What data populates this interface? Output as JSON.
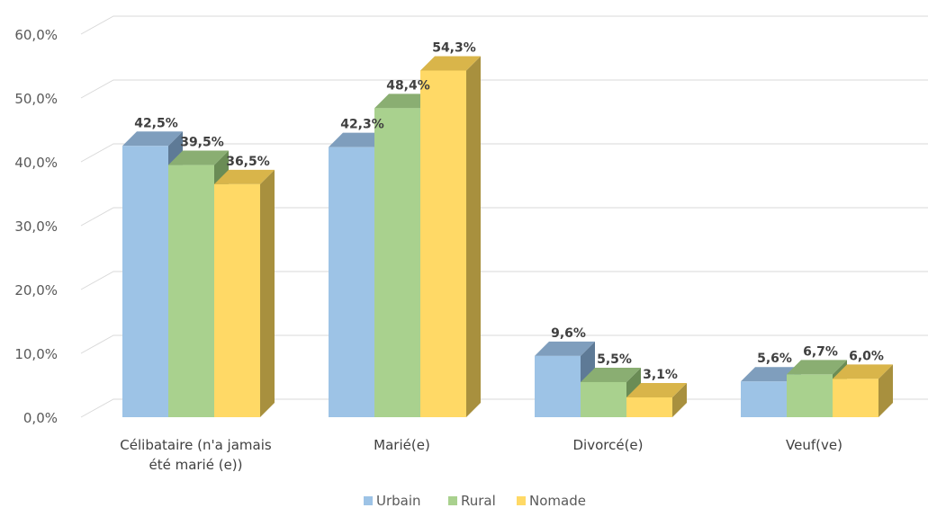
{
  "chart_data": {
    "type": "bar",
    "categories": [
      "Célibataire (n'a jamais été marié (e))",
      "Marié(e)",
      "Divorcé(e)",
      "Veuf(ve)"
    ],
    "category_lines": [
      [
        "Célibataire (n'a jamais",
        "été marié (e))"
      ],
      [
        "Marié(e)"
      ],
      [
        "Divorcé(e)"
      ],
      [
        "Veuf(ve)"
      ]
    ],
    "series": [
      {
        "name": "Urbain",
        "values": [
          42.5,
          42.3,
          9.6,
          5.6
        ],
        "labels": [
          "42,5%",
          "42,3%",
          "9,6%",
          "5,6%"
        ],
        "color": "#9DC3E6",
        "top_color": "#7F9EBD",
        "side_color": "#5E7A96"
      },
      {
        "name": "Rural",
        "values": [
          39.5,
          48.4,
          5.5,
          6.7
        ],
        "labels": [
          "39,5%",
          "48,4%",
          "5,5%",
          "6,7%"
        ],
        "color": "#A9D18E",
        "top_color": "#8AAE72",
        "side_color": "#6A8C55"
      },
      {
        "name": "Nomade",
        "values": [
          36.5,
          54.3,
          3.1,
          6.0
        ],
        "labels": [
          "36,5%",
          "54,3%",
          "3,1%",
          "6,0%"
        ],
        "color": "#FFD966",
        "top_color": "#D9B54A",
        "side_color": "#A8903E"
      }
    ],
    "y_ticks": [
      0,
      10,
      20,
      30,
      40,
      50,
      60
    ],
    "y_tick_labels": [
      "0,0%",
      "10,0%",
      "20,0%",
      "30,0%",
      "40,0%",
      "50,0%",
      "60,0%"
    ],
    "ylim": [
      0,
      60
    ],
    "grid": true,
    "legend_position": "bottom",
    "three_d": true
  }
}
